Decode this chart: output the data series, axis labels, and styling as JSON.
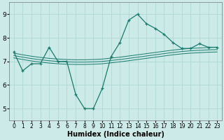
{
  "title": "",
  "xlabel": "Humidex (Indice chaleur)",
  "ylabel": "",
  "bg_color": "#cceae7",
  "grid_color": "#b0d8d4",
  "line_color": "#1a7a6e",
  "ylim": [
    4.5,
    9.5
  ],
  "xlim": [
    -0.5,
    23.5
  ],
  "yticks": [
    5,
    6,
    7,
    8,
    9
  ],
  "xticks": [
    0,
    1,
    2,
    3,
    4,
    5,
    6,
    7,
    8,
    9,
    10,
    11,
    12,
    13,
    14,
    15,
    16,
    17,
    18,
    19,
    20,
    21,
    22,
    23
  ],
  "main_x": [
    0,
    1,
    2,
    3,
    4,
    5,
    6,
    7,
    8,
    9,
    10,
    11,
    12,
    13,
    14,
    15,
    16,
    17,
    18,
    19,
    20,
    21,
    22,
    23
  ],
  "main_y": [
    7.4,
    6.6,
    6.9,
    6.9,
    7.6,
    7.0,
    7.0,
    5.6,
    5.0,
    5.0,
    5.85,
    7.2,
    7.8,
    8.75,
    9.0,
    8.6,
    8.4,
    8.15,
    7.8,
    7.55,
    7.55,
    7.75,
    7.6,
    7.6
  ],
  "flat1_y": [
    7.35,
    7.28,
    7.22,
    7.17,
    7.13,
    7.1,
    7.08,
    7.07,
    7.07,
    7.08,
    7.1,
    7.14,
    7.18,
    7.23,
    7.28,
    7.33,
    7.38,
    7.43,
    7.48,
    7.52,
    7.55,
    7.57,
    7.59,
    7.6
  ],
  "flat2_y": [
    7.25,
    7.18,
    7.12,
    7.07,
    7.03,
    7.0,
    6.98,
    6.97,
    6.97,
    6.98,
    7.0,
    7.04,
    7.08,
    7.13,
    7.18,
    7.23,
    7.28,
    7.33,
    7.38,
    7.42,
    7.45,
    7.47,
    7.49,
    7.5
  ],
  "flat3_y": [
    7.15,
    7.08,
    7.02,
    6.97,
    6.93,
    6.9,
    6.88,
    6.87,
    6.87,
    6.88,
    6.9,
    6.94,
    6.98,
    7.03,
    7.08,
    7.13,
    7.18,
    7.23,
    7.28,
    7.32,
    7.35,
    7.37,
    7.39,
    7.4
  ]
}
